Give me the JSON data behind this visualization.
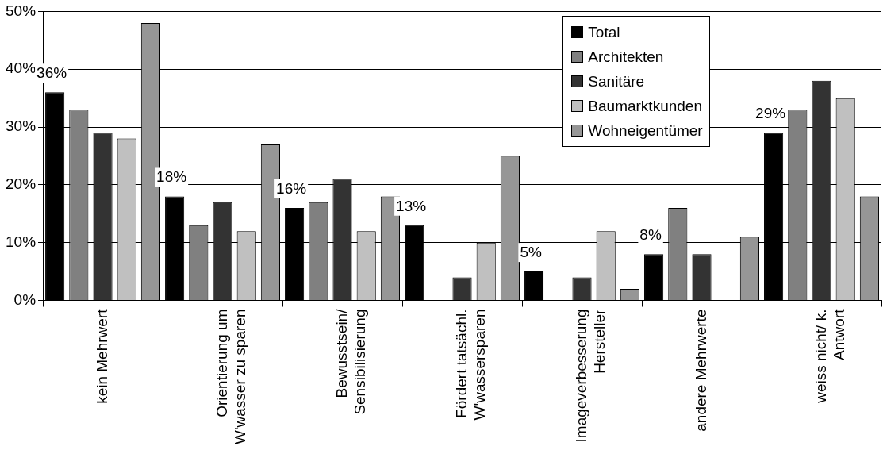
{
  "chart_data": {
    "type": "bar",
    "categories": [
      "kein Mehrwert",
      "Orientierung um W'wasser zu sparen",
      "Bewusstsein/ Sensibilisierung",
      "Fördert tatsächl. W'wassersparen",
      "Imageverbesserung Hersteller",
      "andere Mehrwerte",
      "weiss nicht/ k. Antwort"
    ],
    "series": [
      {
        "name": "Total",
        "color": "#000000",
        "values": [
          36,
          18,
          16,
          13,
          5,
          8,
          29
        ],
        "value_labels": [
          "36%",
          "18%",
          "16%",
          "13%",
          "5%",
          "8%",
          "29%"
        ]
      },
      {
        "name": "Architekten",
        "color": "#808080",
        "values": [
          33,
          13,
          17,
          null,
          null,
          16,
          33
        ]
      },
      {
        "name": "Sanitäre",
        "color": "#333333",
        "values": [
          29,
          17,
          21,
          4,
          4,
          8,
          38
        ]
      },
      {
        "name": "Baumarktkunden",
        "color": "#c0c0c0",
        "values": [
          28,
          12,
          12,
          10,
          12,
          null,
          35
        ]
      },
      {
        "name": "Wohneigentümer",
        "color": "#969696",
        "values": [
          48,
          27,
          18,
          25,
          2,
          11,
          18
        ]
      }
    ],
    "ylim": [
      0,
      50
    ],
    "yticks": [
      {
        "value": 0,
        "label": "0%"
      },
      {
        "value": 10,
        "label": "10%"
      },
      {
        "value": 20,
        "label": "20%"
      },
      {
        "value": 30,
        "label": "30%"
      },
      {
        "value": 40,
        "label": "40%"
      },
      {
        "value": 50,
        "label": "50%"
      }
    ],
    "grid": "y",
    "legend": "top right"
  }
}
